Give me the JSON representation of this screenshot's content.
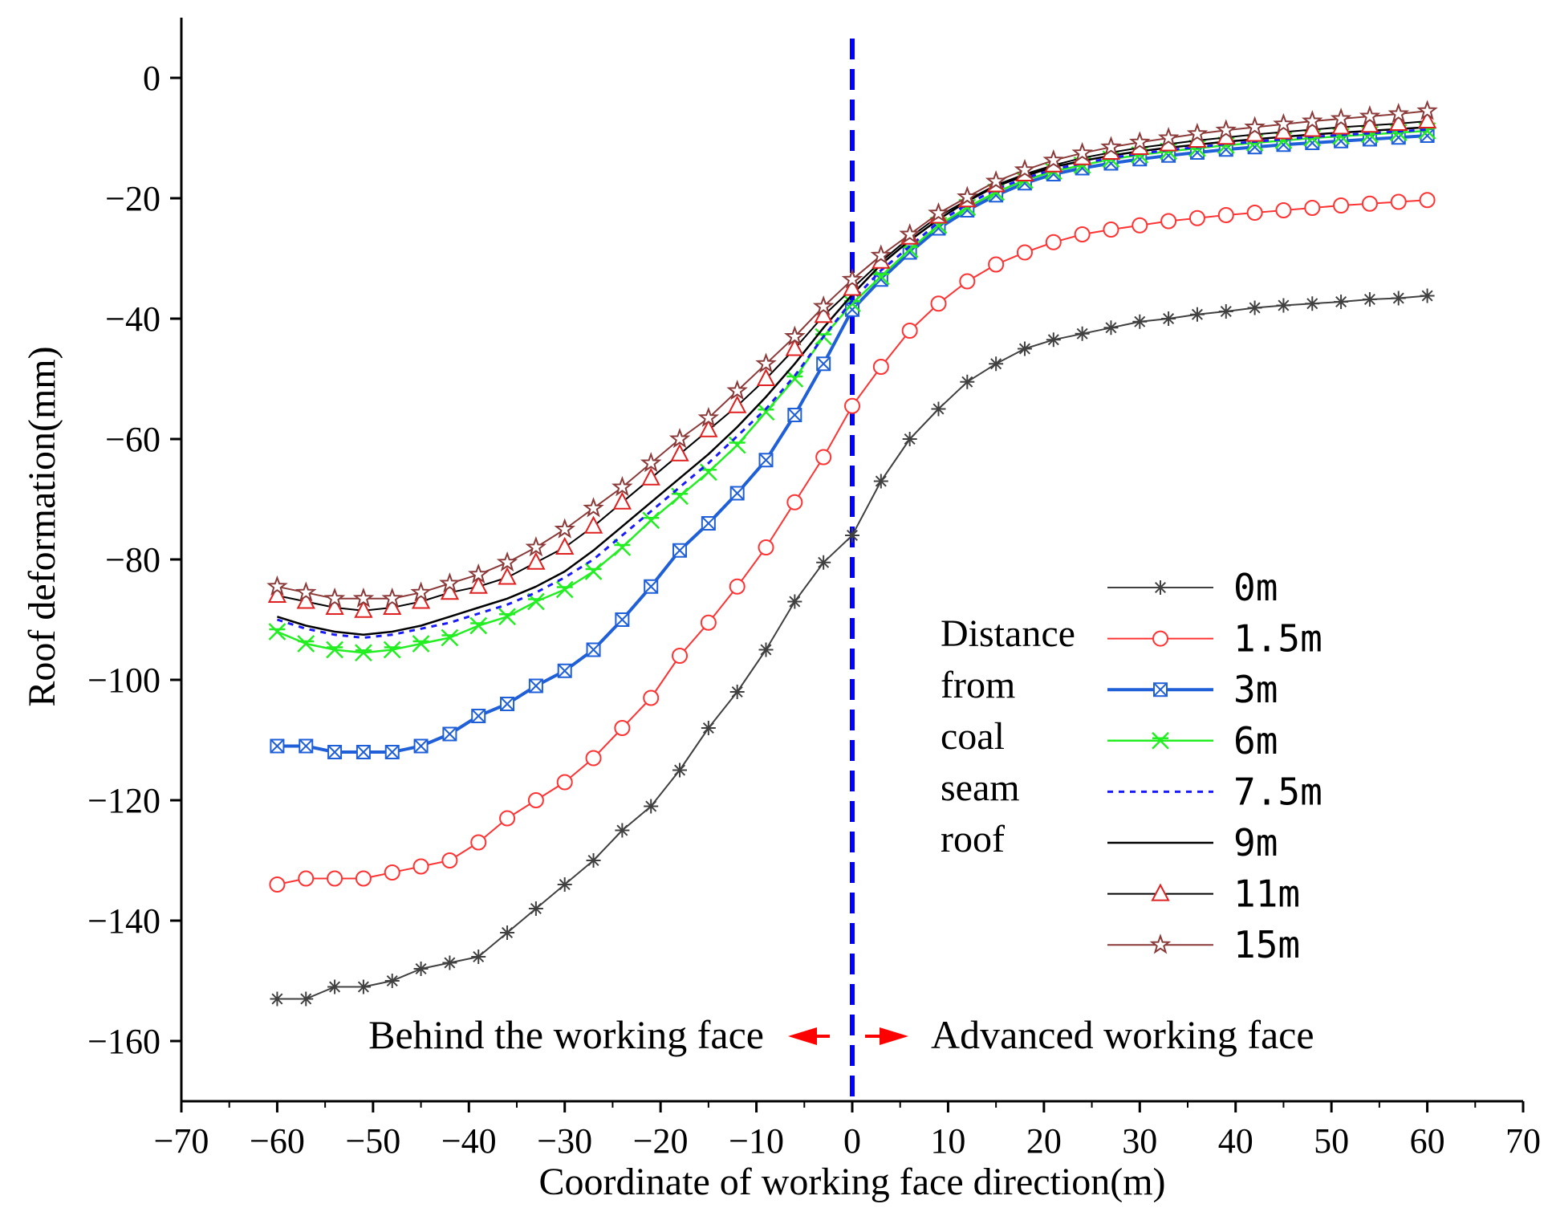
{
  "chart_data": {
    "type": "line",
    "xlabel": "Coordinate of working face direction(m)",
    "ylabel": "Roof deformation(mm)",
    "xlim": [
      -70,
      70
    ],
    "ylim": [
      -170,
      10
    ],
    "xticks": [
      -70,
      -60,
      -50,
      -40,
      -30,
      -20,
      -10,
      0,
      10,
      20,
      30,
      40,
      50,
      60,
      70
    ],
    "yticks": [
      0,
      -20,
      -40,
      -60,
      -80,
      -100,
      -120,
      -140,
      -160
    ],
    "xtick_labels": [
      "−70",
      "−60",
      "−50",
      "−40",
      "−30",
      "−20",
      "−10",
      "0",
      "10",
      "20",
      "30",
      "40",
      "50",
      "60",
      "70"
    ],
    "ytick_labels": [
      "0",
      "−20",
      "−40",
      "−60",
      "−80",
      "−100",
      "−120",
      "−140",
      "−160"
    ],
    "legend_title": [
      "Distance",
      "from",
      "coal",
      "seam",
      "roof"
    ],
    "annotations": {
      "left": "Behind the working face",
      "right": "Advanced working face",
      "arrow_color": "#ff0000",
      "divider_x": 0,
      "divider_color": "#0000ff"
    },
    "x": [
      -60,
      -57,
      -54,
      -51,
      -48,
      -45,
      -42,
      -39,
      -36,
      -33,
      -30,
      -27,
      -24,
      -21,
      -18,
      -15,
      -12,
      -9,
      -6,
      -3,
      0,
      3,
      6,
      9,
      12,
      15,
      18,
      21,
      24,
      27,
      30,
      33,
      36,
      39,
      42,
      45,
      48,
      51,
      54,
      57,
      60
    ],
    "series": [
      {
        "name": "0m",
        "label": "0m",
        "color": "#404040",
        "marker": "asterisk",
        "dash": "",
        "width": 2,
        "values": [
          -153,
          -153,
          -151,
          -151,
          -150,
          -148,
          -147,
          -146,
          -142,
          -138,
          -134,
          -130,
          -125,
          -121,
          -115,
          -108,
          -102,
          -95,
          -87,
          -80.5,
          -76,
          -67,
          -60,
          -55,
          -50.5,
          -47.5,
          -45,
          -43.5,
          -42.5,
          -41.5,
          -40.5,
          -40,
          -39.3,
          -38.8,
          -38.2,
          -37.8,
          -37.5,
          -37.2,
          -36.8,
          -36.6,
          -36.2
        ]
      },
      {
        "name": "1.5m",
        "label": "1.5m",
        "color": "#ff3333",
        "marker": "circle",
        "dash": "",
        "width": 2,
        "values": [
          -134,
          -133,
          -133,
          -133,
          -132,
          -131,
          -130,
          -127,
          -123,
          -120,
          -117,
          -113,
          -108,
          -103,
          -96,
          -90.5,
          -84.5,
          -78,
          -70.5,
          -63,
          -54.5,
          -48,
          -42,
          -37.5,
          -33.8,
          -31,
          -29,
          -27.3,
          -26,
          -25.2,
          -24.5,
          -23.8,
          -23.3,
          -22.8,
          -22.4,
          -22,
          -21.6,
          -21.2,
          -20.9,
          -20.6,
          -20.3
        ]
      },
      {
        "name": "3m",
        "label": "3m",
        "color": "#1f5fd8",
        "marker": "boxx",
        "dash": "",
        "width": 4,
        "values": [
          -111,
          -111,
          -112,
          -112,
          -112,
          -111,
          -109,
          -106,
          -104,
          -101,
          -98.5,
          -95,
          -90,
          -84.5,
          -78.5,
          -74,
          -69,
          -63.5,
          -56,
          -47.5,
          -38.5,
          -33.5,
          -29,
          -25,
          -22,
          -19.5,
          -17.5,
          -16,
          -15,
          -14.2,
          -13.5,
          -12.9,
          -12.4,
          -11.9,
          -11.5,
          -11.1,
          -10.8,
          -10.5,
          -10.2,
          -9.9,
          -9.6
        ]
      },
      {
        "name": "6m",
        "label": "6m",
        "color": "#22ee22",
        "marker": "xstar",
        "dash": "",
        "width": 2.5,
        "values": [
          -92,
          -94,
          -95,
          -95.5,
          -95,
          -94,
          -93,
          -91,
          -89.5,
          -87,
          -85,
          -82,
          -78,
          -73.5,
          -69.5,
          -65.5,
          -61,
          -55.5,
          -50,
          -43,
          -37.5,
          -33,
          -28.5,
          -24.5,
          -21.5,
          -19,
          -17,
          -15.5,
          -14.5,
          -13.5,
          -12.8,
          -12.2,
          -11.7,
          -11.2,
          -10.8,
          -10.4,
          -10,
          -9.7,
          -9.4,
          -9.1,
          -8.8
        ]
      },
      {
        "name": "7.5m",
        "label": "7.5m",
        "color": "#1a1aff",
        "marker": "none",
        "dash": "7 7",
        "width": 3,
        "values": [
          -90,
          -91.5,
          -92.5,
          -93,
          -92.5,
          -91.5,
          -90.5,
          -89,
          -87.5,
          -85.5,
          -83,
          -80,
          -76,
          -72,
          -68,
          -64,
          -59.5,
          -55,
          -49.5,
          -43,
          -37,
          -32,
          -28,
          -24,
          -21,
          -18.5,
          -16.7,
          -15.2,
          -14.2,
          -13.3,
          -12.6,
          -12,
          -11.5,
          -11,
          -10.6,
          -10.2,
          -9.8,
          -9.5,
          -9.2,
          -8.9,
          -8.6
        ]
      },
      {
        "name": "9m",
        "label": "9m",
        "color": "#000000",
        "marker": "none",
        "dash": "",
        "width": 2.5,
        "values": [
          -89.5,
          -91,
          -92,
          -92.5,
          -92,
          -91,
          -89.5,
          -88,
          -86.5,
          -84.5,
          -82,
          -78.5,
          -74.5,
          -70.5,
          -66.5,
          -62.5,
          -58,
          -53,
          -47.5,
          -41.5,
          -36,
          -31,
          -27,
          -23.5,
          -20.5,
          -18,
          -16.3,
          -14.8,
          -13.8,
          -12.9,
          -12.2,
          -11.6,
          -11.1,
          -10.6,
          -10.2,
          -9.8,
          -9.4,
          -9.1,
          -8.8,
          -8.5,
          -8.2
        ]
      },
      {
        "name": "11m",
        "label": "11m",
        "color": "#e02020",
        "marker": "triangle",
        "dash": "",
        "width": 2,
        "line_color": "#000000",
        "values": [
          -86,
          -87,
          -88,
          -88.5,
          -88,
          -87,
          -85.5,
          -84.5,
          -83,
          -80.5,
          -78,
          -74.5,
          -70.5,
          -66.5,
          -62.5,
          -58.5,
          -54.5,
          -50,
          -45,
          -39.5,
          -35,
          -30.5,
          -26.5,
          -23,
          -20.3,
          -17.8,
          -16,
          -14.5,
          -13.3,
          -12.4,
          -11.6,
          -11,
          -10.4,
          -9.9,
          -9.4,
          -9,
          -8.6,
          -8.2,
          -7.9,
          -7.6,
          -7.2
        ]
      },
      {
        "name": "15m",
        "label": "15m",
        "color": "#8b3a3a",
        "marker": "star",
        "dash": "",
        "width": 2,
        "values": [
          -84.5,
          -85.5,
          -86.5,
          -86.5,
          -86.5,
          -85.5,
          -84,
          -82.5,
          -80.5,
          -78,
          -75,
          -71.5,
          -68,
          -64,
          -60,
          -56.5,
          -52,
          -47.5,
          -43,
          -38,
          -33.5,
          -29.5,
          -26,
          -22.5,
          -19.8,
          -17.2,
          -15.3,
          -13.7,
          -12.5,
          -11.5,
          -10.7,
          -10,
          -9.3,
          -8.7,
          -8.2,
          -7.7,
          -7.2,
          -6.8,
          -6.4,
          -6,
          -5.5
        ]
      }
    ]
  }
}
